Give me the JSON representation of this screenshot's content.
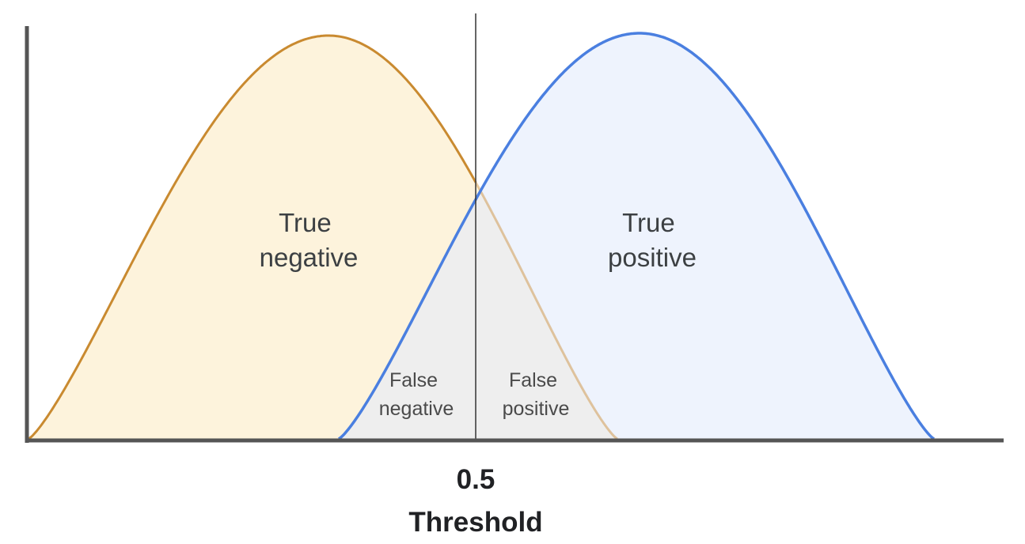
{
  "regions": {
    "true_negative": [
      "True",
      "negative"
    ],
    "true_positive": [
      "True",
      "positive"
    ],
    "false_negative": [
      "False",
      "negative"
    ],
    "false_positive": [
      "False",
      "positive"
    ]
  },
  "threshold": {
    "value": "0.5",
    "label": "Threshold"
  },
  "colors": {
    "negative_curve": "#c98a30",
    "negative_fill": "#fdf3dc",
    "positive_curve": "#4a7fe0",
    "positive_fill": "#eef3fd",
    "overlap_fill": "#eeeeee",
    "axis": "#555555",
    "threshold_line": "#333333"
  }
}
